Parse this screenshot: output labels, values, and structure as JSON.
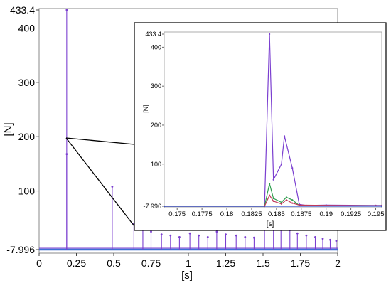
{
  "chart_data": [
    {
      "id": "main",
      "type": "line",
      "xlabel": "[s]",
      "ylabel": "[N]",
      "xlim": [
        0,
        2
      ],
      "ylim": [
        -7.996,
        433.4
      ],
      "x_ticks": [
        "0",
        "0.25",
        "0.5",
        "0.75",
        "1",
        "1.25",
        "1.5",
        "1.75",
        "2"
      ],
      "y_ticks": [
        "-7.996",
        "100",
        "200",
        "300",
        "400",
        "433.4"
      ],
      "grid": false,
      "legend": "none",
      "colors": {
        "primary": "#7b3fd0",
        "secondary": "#3d6fd6"
      },
      "series": [
        {
          "color": "#7b3fd0",
          "spikes": [
            {
              "x": 0.185,
              "y": 433.4
            },
            {
              "x": 0.185,
              "y": 168
            },
            {
              "x": 0.49,
              "y": 108
            },
            {
              "x": 0.635,
              "y": 40
            },
            {
              "x": 0.695,
              "y": 30
            },
            {
              "x": 0.75,
              "y": 25
            },
            {
              "x": 0.82,
              "y": 20
            },
            {
              "x": 0.88,
              "y": 18
            },
            {
              "x": 0.94,
              "y": 15
            },
            {
              "x": 1.01,
              "y": 22
            },
            {
              "x": 1.07,
              "y": 18
            },
            {
              "x": 1.13,
              "y": 15
            },
            {
              "x": 1.19,
              "y": 25
            },
            {
              "x": 1.25,
              "y": 20
            },
            {
              "x": 1.32,
              "y": 18
            },
            {
              "x": 1.38,
              "y": 15
            },
            {
              "x": 1.44,
              "y": 14
            },
            {
              "x": 1.51,
              "y": 32
            },
            {
              "x": 1.57,
              "y": 30
            },
            {
              "x": 1.62,
              "y": 35
            },
            {
              "x": 1.68,
              "y": 28
            },
            {
              "x": 1.73,
              "y": 22
            },
            {
              "x": 1.79,
              "y": 18
            },
            {
              "x": 1.85,
              "y": 15
            },
            {
              "x": 1.9,
              "y": 12
            },
            {
              "x": 1.95,
              "y": 10
            },
            {
              "x": 1.99,
              "y": 8
            }
          ]
        }
      ]
    },
    {
      "id": "inset",
      "type": "line",
      "xlabel": "[s]",
      "ylabel": "[N]",
      "xlim": [
        0.1737,
        0.1956
      ],
      "ylim": [
        -7.996,
        433.4
      ],
      "x_ticks": [
        "0.175",
        "0.1775",
        "0.18",
        "0.1825",
        "0.185",
        "0.1875",
        "0.19",
        "0.1925",
        "0.195"
      ],
      "y_ticks": [
        "-7.996",
        "100",
        "200",
        "300",
        "400",
        "433.4"
      ],
      "grid": false,
      "legend": "none",
      "series": [
        {
          "color": "#7b3fd0",
          "x": [
            0.1737,
            0.1838,
            0.1843,
            0.1847,
            0.1855,
            0.1858,
            0.1866,
            0.1873,
            0.188,
            0.19,
            0.195,
            0.1956
          ],
          "y": [
            -7.996,
            -7.996,
            433.4,
            60,
            100,
            172,
            90,
            -3,
            -6,
            -5,
            -6,
            -6
          ]
        },
        {
          "color": "#2e9e4e",
          "x": [
            0.1737,
            0.1838,
            0.1843,
            0.1847,
            0.1855,
            0.186,
            0.1866,
            0.1873,
            0.195,
            0.1956
          ],
          "y": [
            -7.996,
            -7.996,
            50,
            12,
            2,
            15,
            8,
            -6,
            -7,
            -7
          ]
        },
        {
          "color": "#c0395a",
          "x": [
            0.1737,
            0.1838,
            0.1843,
            0.1847,
            0.1855,
            0.186,
            0.1866,
            0.1873,
            0.195,
            0.1956
          ],
          "y": [
            -7.996,
            -7.996,
            20,
            5,
            -2,
            8,
            0,
            -5,
            -7,
            -7
          ]
        },
        {
          "color": "#2f4fc9",
          "x": [
            0.1737,
            0.1956
          ],
          "y": [
            -7.996,
            -7.996
          ]
        }
      ]
    }
  ]
}
